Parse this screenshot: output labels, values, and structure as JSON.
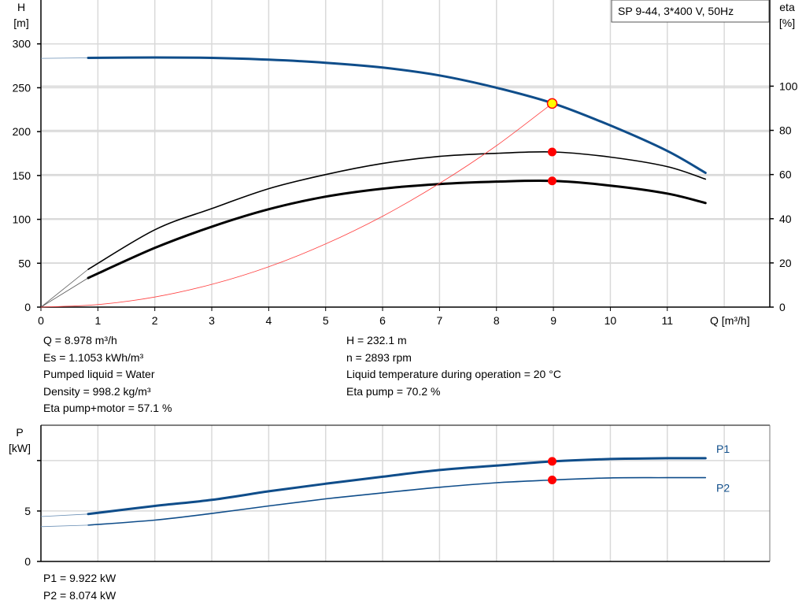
{
  "chart_data": [
    {
      "type": "line",
      "title": "SP 9-44, 3*400 V, 50Hz",
      "xlabel": "Q [m³/h]",
      "ylabel_left": [
        "H",
        "[m]"
      ],
      "ylabel_right": [
        "eta",
        "[%]"
      ],
      "xlim": [
        0,
        12.8
      ],
      "ylim_left": [
        0,
        350
      ],
      "ylim_right": [
        0,
        139
      ],
      "x_ticks": [
        0,
        1,
        2,
        3,
        4,
        5,
        6,
        7,
        8,
        9,
        10,
        11
      ],
      "y_ticks_left": [
        0,
        50,
        100,
        150,
        200,
        250,
        300
      ],
      "y_ticks_right": [
        0,
        20,
        40,
        60,
        80,
        100
      ],
      "grid": true,
      "series": [
        {
          "key": "H",
          "axis": "left",
          "color": "#0f4d8a",
          "width": 3,
          "x": [
            0.83,
            2,
            3,
            4,
            5,
            6,
            7,
            8,
            9,
            10,
            11,
            11.67
          ],
          "values": [
            284,
            284.5,
            284,
            282,
            278.5,
            273,
            264,
            250,
            232.1,
            207,
            178,
            153
          ],
          "extension": {
            "x": [
              0,
              0.83
            ],
            "values": [
              283.5,
              284
            ]
          }
        },
        {
          "key": "eta_pump",
          "axis": "right",
          "color": "#000000",
          "width": 1.6,
          "x": [
            0.83,
            2,
            3,
            4,
            5,
            6,
            7,
            8,
            9,
            10,
            11,
            11.67
          ],
          "values": [
            17.1,
            35,
            44.6,
            53.6,
            60,
            65,
            68.2,
            69.6,
            70.2,
            67.9,
            63.6,
            57.9
          ],
          "extension": {
            "x": [
              0,
              0.83
            ],
            "values": [
              0,
              17.1
            ]
          }
        },
        {
          "key": "eta_pump_motor",
          "axis": "right",
          "color": "#000000",
          "width": 3,
          "x": [
            0.83,
            2,
            3,
            4,
            5,
            6,
            7,
            8,
            9,
            10,
            11,
            11.67
          ],
          "values": [
            13.2,
            26.8,
            36.4,
            44.3,
            50,
            53.6,
            55.7,
            56.8,
            57.1,
            55,
            51.4,
            47.1
          ],
          "extension": {
            "x": [
              0,
              0.83
            ],
            "values": [
              0,
              13.2
            ]
          }
        },
        {
          "key": "system",
          "axis": "left",
          "color": "#ff4040",
          "width": 0.8,
          "x": [
            0,
            1,
            2,
            3,
            4,
            5,
            6,
            7,
            8,
            8.978
          ],
          "values": [
            0,
            2.9,
            11.5,
            25.9,
            46,
            72,
            103.6,
            141,
            184,
            232.1
          ]
        }
      ],
      "duty_points": [
        {
          "x": 8.978,
          "value": 232.1,
          "axis": "left",
          "style": "yellow"
        },
        {
          "x": 8.978,
          "value": 70.2,
          "axis": "right",
          "style": "red"
        },
        {
          "x": 8.978,
          "value": 57.1,
          "axis": "right",
          "style": "red"
        }
      ]
    },
    {
      "type": "line",
      "ylabel": [
        "P",
        "[kW]"
      ],
      "xlim": [
        0,
        12.8
      ],
      "ylim": [
        0,
        13.5
      ],
      "y_ticks": [
        0,
        5,
        10
      ],
      "y_tick_labels": [
        "0",
        "5",
        ""
      ],
      "grid": true,
      "series": [
        {
          "name": "P1",
          "color": "#0f4d8a",
          "width": 3,
          "x": [
            0.83,
            2,
            3,
            4,
            5,
            6,
            7,
            8,
            9,
            10,
            11,
            11.67
          ],
          "values": [
            4.7,
            5.5,
            6.1,
            6.95,
            7.7,
            8.4,
            9.06,
            9.5,
            9.922,
            10.15,
            10.23,
            10.23
          ],
          "extension": {
            "x": [
              0,
              0.83
            ],
            "values": [
              4.45,
              4.7
            ]
          }
        },
        {
          "name": "P2",
          "color": "#0f4d8a",
          "width": 1.6,
          "x": [
            0.83,
            2,
            3,
            4,
            5,
            6,
            7,
            8,
            9,
            10,
            11,
            11.67
          ],
          "values": [
            3.6,
            4.1,
            4.75,
            5.5,
            6.2,
            6.8,
            7.35,
            7.8,
            8.074,
            8.28,
            8.3,
            8.3
          ],
          "extension": {
            "x": [
              0,
              0.83
            ],
            "values": [
              3.45,
              3.6
            ]
          }
        }
      ],
      "duty_points": [
        {
          "x": 8.978,
          "value": 9.922
        },
        {
          "x": 8.978,
          "value": 8.074
        }
      ]
    }
  ],
  "info_left": [
    "Q = 8.978 m³/h",
    "Es = 1.1053 kWh/m³",
    "Pumped liquid = Water",
    "Density = 998.2 kg/m³",
    "Eta pump+motor = 57.1 %"
  ],
  "info_right": [
    "H = 232.1 m",
    "n = 2893 rpm",
    "Liquid temperature during operation = 20 °C",
    "Eta pump = 70.2 %"
  ],
  "power_info": [
    "P1 = 9.922 kW",
    "P2 = 8.074 kW"
  ],
  "colors": {
    "curve": "#0f4d8a",
    "duty": "#ff0000",
    "duty_highlight": "#ffff00",
    "grid": "#d9d9d9"
  }
}
